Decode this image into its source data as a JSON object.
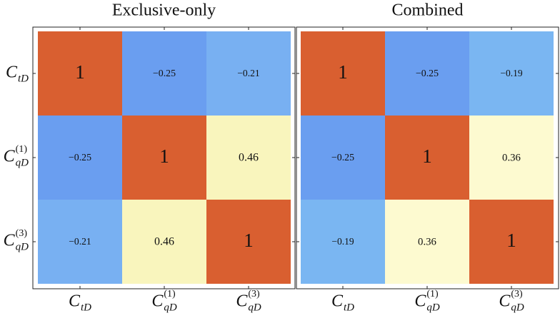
{
  "chart_data": [
    {
      "type": "heatmap",
      "title": "Exclusive-only",
      "x_categories": [
        {
          "base": "C",
          "sub": "tD"
        },
        {
          "base": "C",
          "sub": "qD",
          "sup": "(1)"
        },
        {
          "base": "C",
          "sub": "qD",
          "sup": "(3)"
        }
      ],
      "y_categories": [
        {
          "base": "C",
          "sub": "tD"
        },
        {
          "base": "C",
          "sub": "qD",
          "sup": "(1)"
        },
        {
          "base": "C",
          "sub": "qD",
          "sup": "(3)"
        }
      ],
      "values": [
        [
          1,
          -0.25,
          -0.21
        ],
        [
          -0.25,
          1,
          0.46
        ],
        [
          -0.21,
          0.46,
          1
        ]
      ],
      "value_labels": [
        [
          "1",
          "−0.25",
          "−0.21"
        ],
        [
          "−0.25",
          "1",
          "0.46"
        ],
        [
          "−0.21",
          "0.46",
          "1"
        ]
      ],
      "colors": [
        [
          "#d95f30",
          "#6a9ef0",
          "#78b0f2"
        ],
        [
          "#6a9ef0",
          "#d95f30",
          "#f9f5bd"
        ],
        [
          "#78b0f2",
          "#f9f5bd",
          "#d95f30"
        ]
      ]
    },
    {
      "type": "heatmap",
      "title": "Combined",
      "x_categories": [
        {
          "base": "C",
          "sub": "tD"
        },
        {
          "base": "C",
          "sub": "qD",
          "sup": "(1)"
        },
        {
          "base": "C",
          "sub": "qD",
          "sup": "(3)"
        }
      ],
      "values": [
        [
          1,
          -0.25,
          -0.19
        ],
        [
          -0.25,
          1,
          0.36
        ],
        [
          -0.19,
          0.36,
          1
        ]
      ],
      "value_labels": [
        [
          "1",
          "−0.25",
          "−0.19"
        ],
        [
          "−0.25",
          "1",
          "0.36"
        ],
        [
          "−0.19",
          "0.36",
          "1"
        ]
      ],
      "colors": [
        [
          "#d95f30",
          "#6a9ef0",
          "#7ab6f2"
        ],
        [
          "#6a9ef0",
          "#d95f30",
          "#fdfad0"
        ],
        [
          "#7ab6f2",
          "#fdfad0",
          "#d95f30"
        ]
      ]
    }
  ]
}
